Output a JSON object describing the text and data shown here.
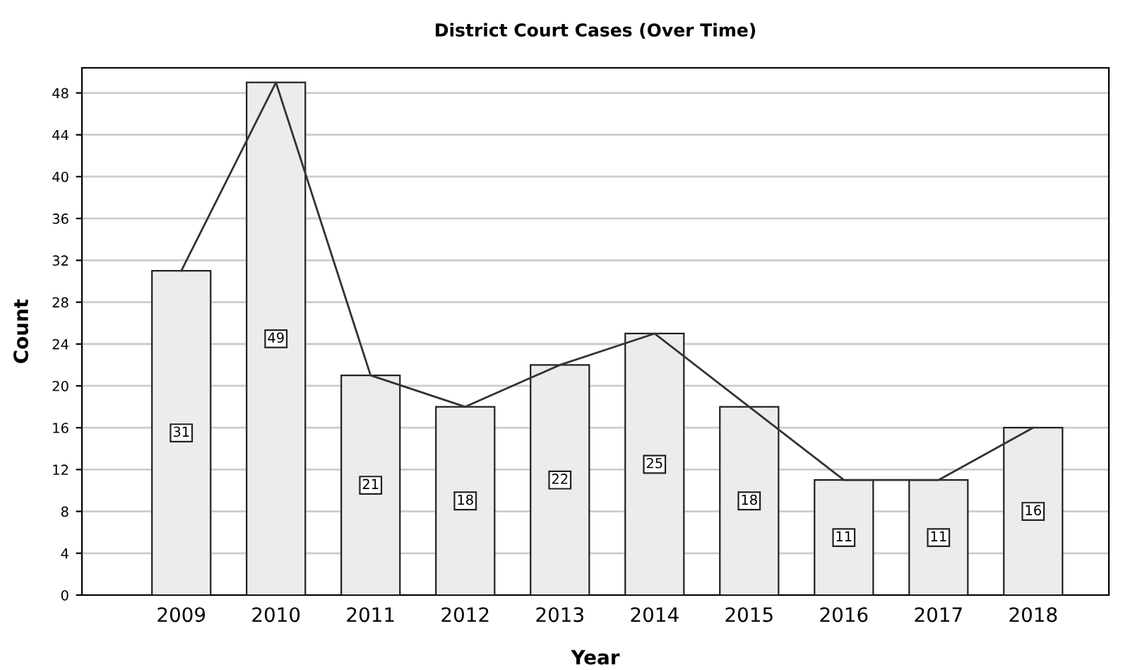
{
  "chart_data": {
    "type": "bar",
    "title": "District Court Cases (Over Time)",
    "xlabel": "Year",
    "ylabel": "Count",
    "categories": [
      "2009",
      "2010",
      "2011",
      "2012",
      "2013",
      "2014",
      "2015",
      "2016",
      "2017",
      "2018"
    ],
    "series": [
      {
        "color": "#ececec",
        "values": [
          31,
          49,
          21,
          18,
          22,
          25,
          18,
          11,
          11,
          16
        ],
        "value_labels": [
          "31",
          "49",
          "21",
          "18",
          "22",
          "25",
          "18",
          "11",
          "11",
          "16"
        ]
      },
      {
        "type": "line",
        "color": "#333333",
        "values": [
          31,
          49,
          21,
          18,
          22,
          25,
          18,
          11,
          11,
          16
        ]
      }
    ],
    "ylim": [
      0,
      50.4
    ],
    "yticks": [
      0,
      4,
      8,
      12,
      16,
      20,
      24,
      28,
      32,
      36,
      40,
      44,
      48
    ],
    "grid": "y",
    "marker": "none",
    "line_style": "solid"
  }
}
